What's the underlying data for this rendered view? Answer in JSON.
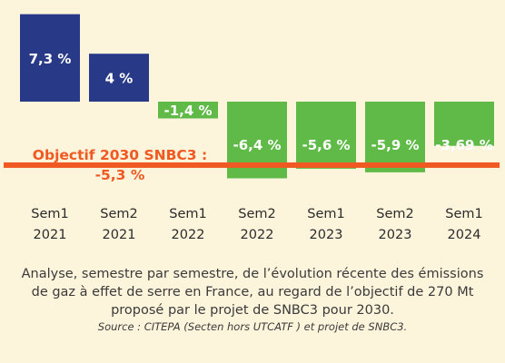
{
  "chart_data": {
    "type": "bar",
    "categories": [
      [
        "Sem1",
        "2021"
      ],
      [
        "Sem2",
        "2021"
      ],
      [
        "Sem1",
        "2022"
      ],
      [
        "Sem2",
        "2022"
      ],
      [
        "Sem1",
        "2023"
      ],
      [
        "Sem2",
        "2023"
      ],
      [
        "Sem1",
        "2024"
      ]
    ],
    "values": [
      7.3,
      4,
      -1.4,
      -6.4,
      -5.6,
      -5.9,
      -3.69
    ],
    "value_labels": [
      "7,3 %",
      "4 %",
      "-1,4 %",
      "-6,4 %",
      "-5,6 %",
      "-5,9 %",
      "-3,69 %"
    ],
    "bar_colors": [
      "#283a87",
      "#283a87",
      "#5fba47",
      "#5fba47",
      "#5fba47",
      "#5fba47",
      "#5fba47"
    ],
    "reference_line": {
      "value": -5.3,
      "label_lines": [
        "Objectif 2030 SNBC3 :",
        "-5,3 %"
      ],
      "color": "#f05a22"
    },
    "label_color": "#ffffff",
    "category_label_color": "#2b2b2b"
  },
  "caption": {
    "lines": [
      "Analyse, semestre par semestre, de l’évolution récente des émissions",
      "de gaz à effet de serre en France, au regard de l’objectif de 270 Mt",
      "proposé par le projet de SNBC3 pour 2030."
    ],
    "source": "Source : CITEPA (Secten hors UTCATF ) et projet de SNBC3."
  },
  "colors": {
    "background": "#fdf4dc",
    "caption_text": "#3a3a3a"
  }
}
